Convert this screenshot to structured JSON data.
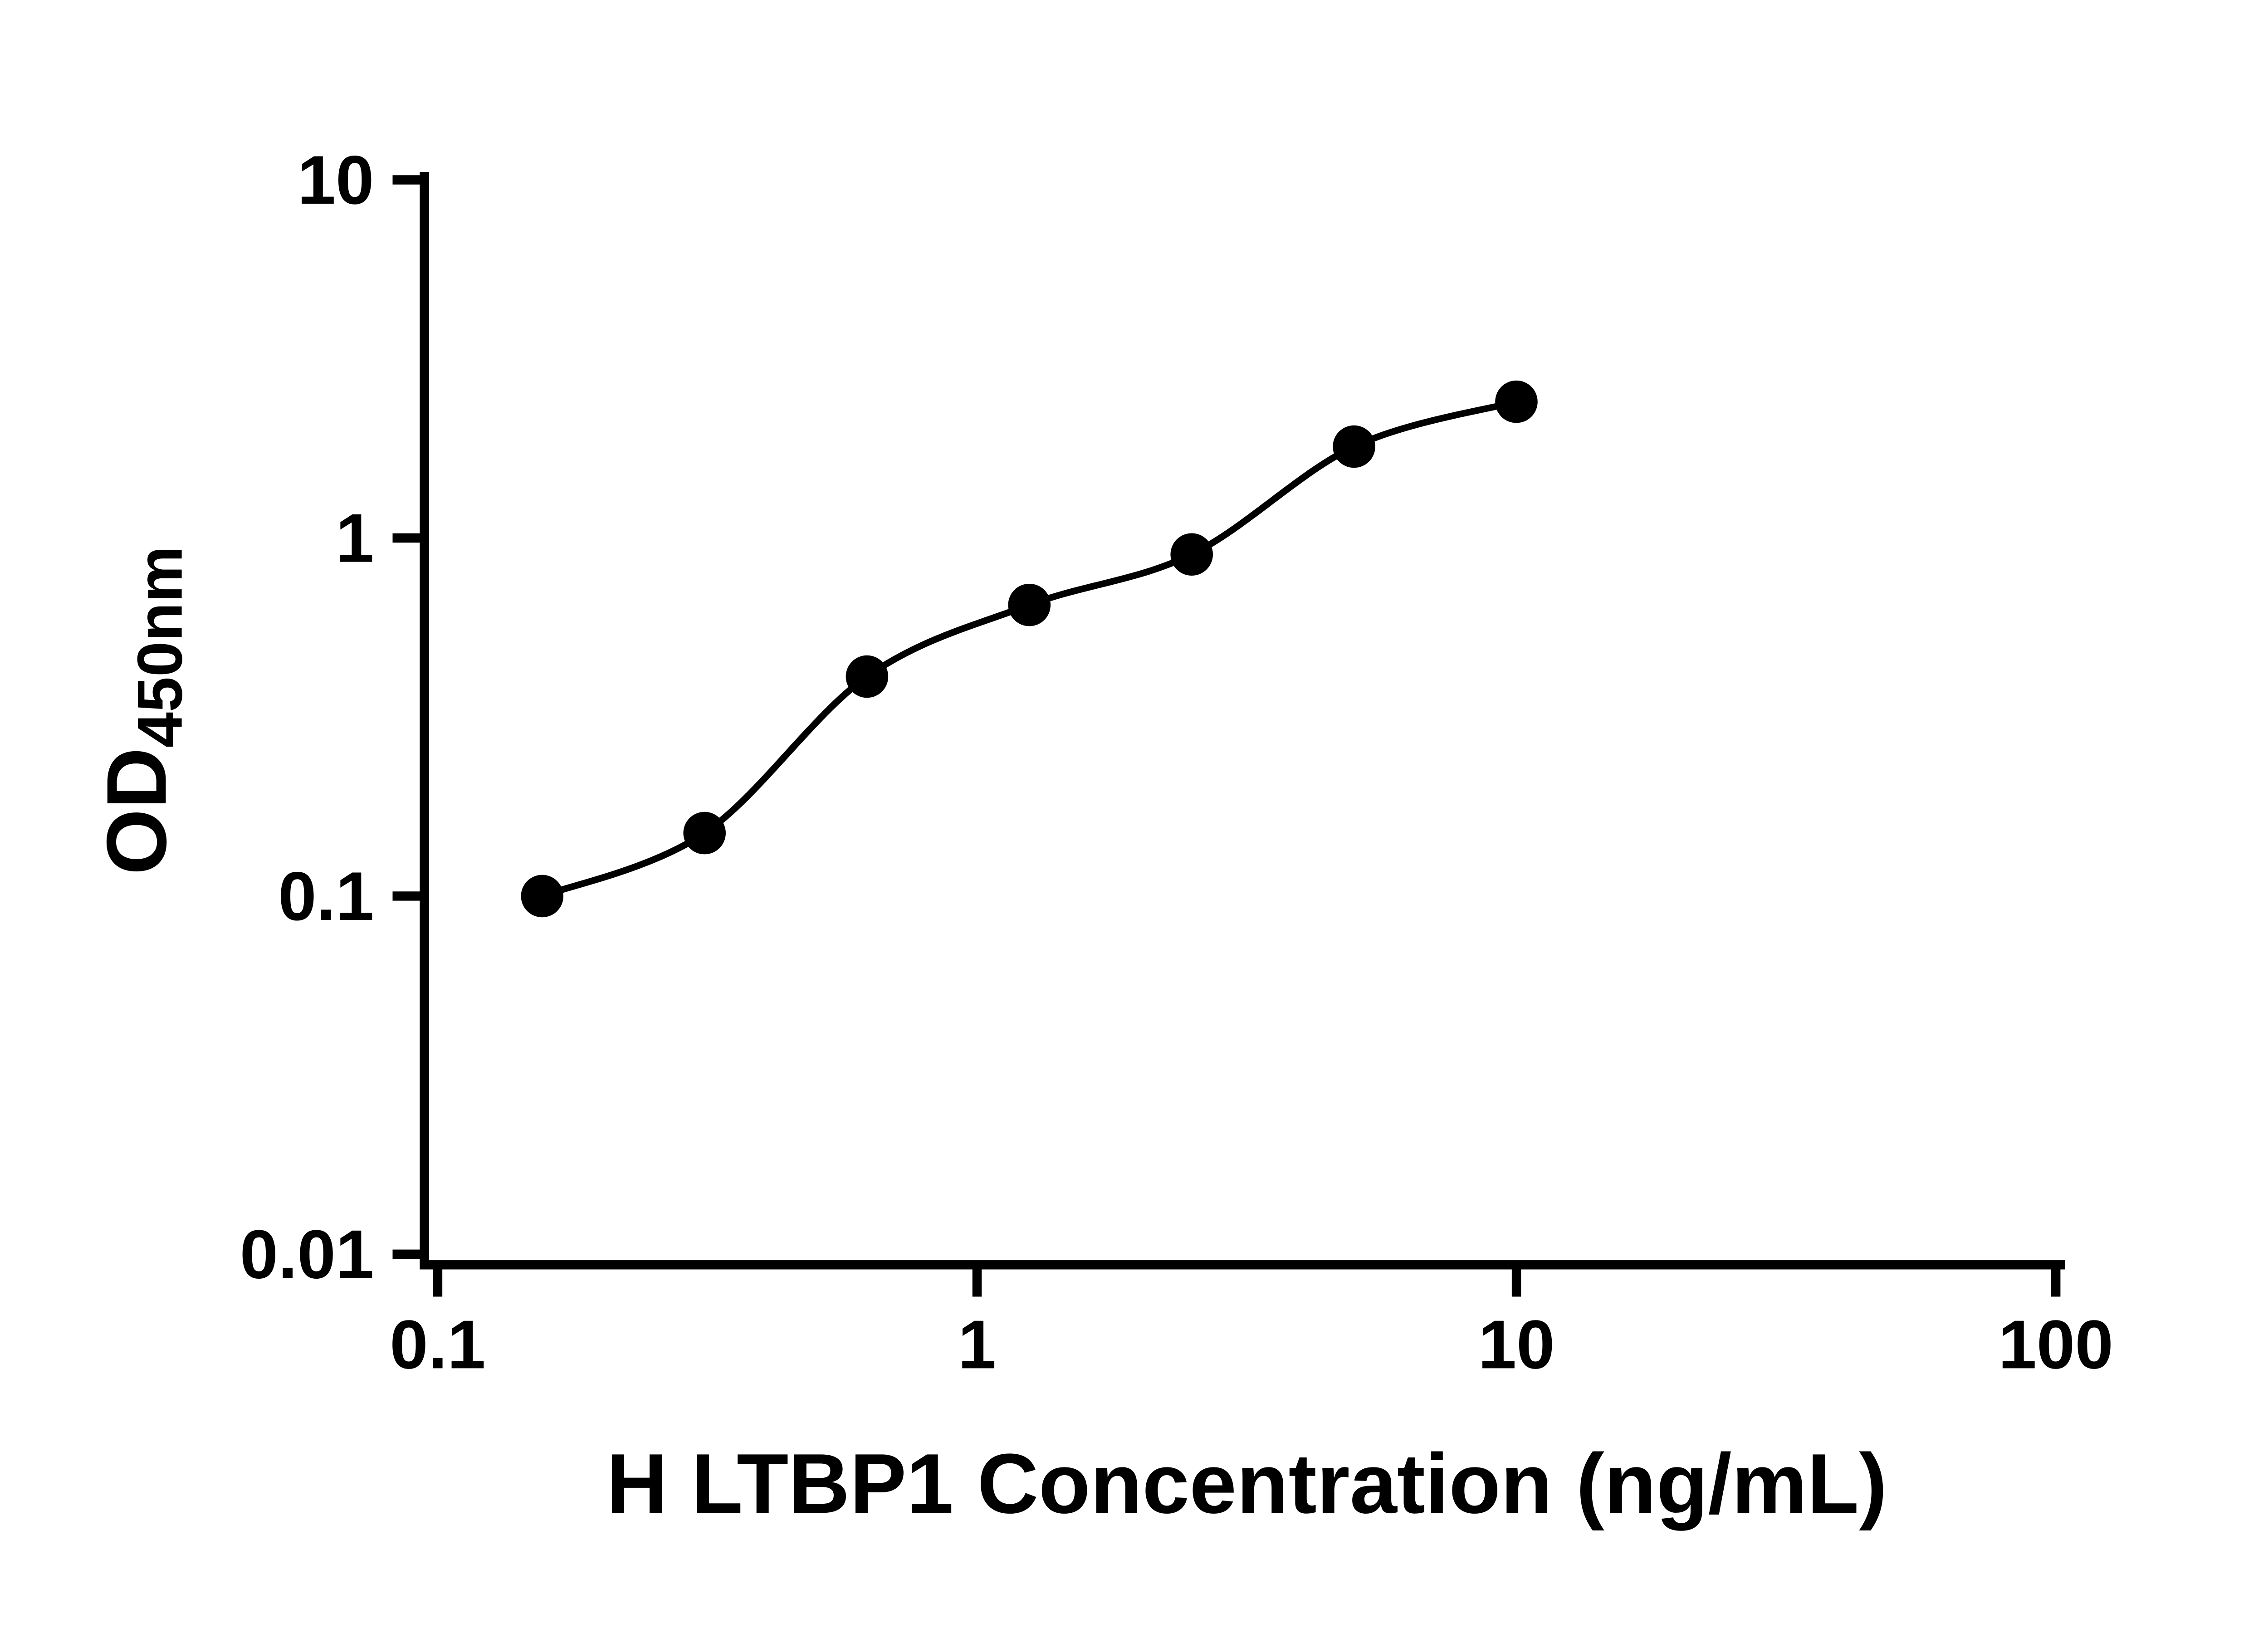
{
  "chart_data": {
    "type": "scatter",
    "title": "",
    "xlabel": "H LTBP1 Concentration (ng/mL)",
    "ylabel": "OD450nm",
    "ylabel_main": "OD",
    "ylabel_sub": "450nm",
    "x_scale": "log10",
    "y_scale": "log10",
    "xlim": [
      0.1,
      100
    ],
    "ylim": [
      0.01,
      10
    ],
    "x_ticks": [
      0.1,
      1,
      10,
      100
    ],
    "x_tick_labels": [
      "0.1",
      "1",
      "10",
      "100"
    ],
    "y_ticks": [
      0.01,
      0.1,
      1,
      10
    ],
    "y_tick_labels": [
      "0.01",
      "0.1",
      "1",
      "10"
    ],
    "grid": false,
    "legend": "none",
    "series": [
      {
        "marker": "filled-circle",
        "marker_color": "#000000",
        "line": "smooth-fit-curve",
        "line_color": "#000000",
        "x": [
          0.15625,
          0.3125,
          0.625,
          1.25,
          2.5,
          5,
          10
        ],
        "y": [
          0.1,
          0.15,
          0.41,
          0.65,
          0.9,
          1.8,
          2.4
        ]
      }
    ]
  },
  "colors": {
    "foreground": "#000000",
    "background": "#ffffff"
  }
}
